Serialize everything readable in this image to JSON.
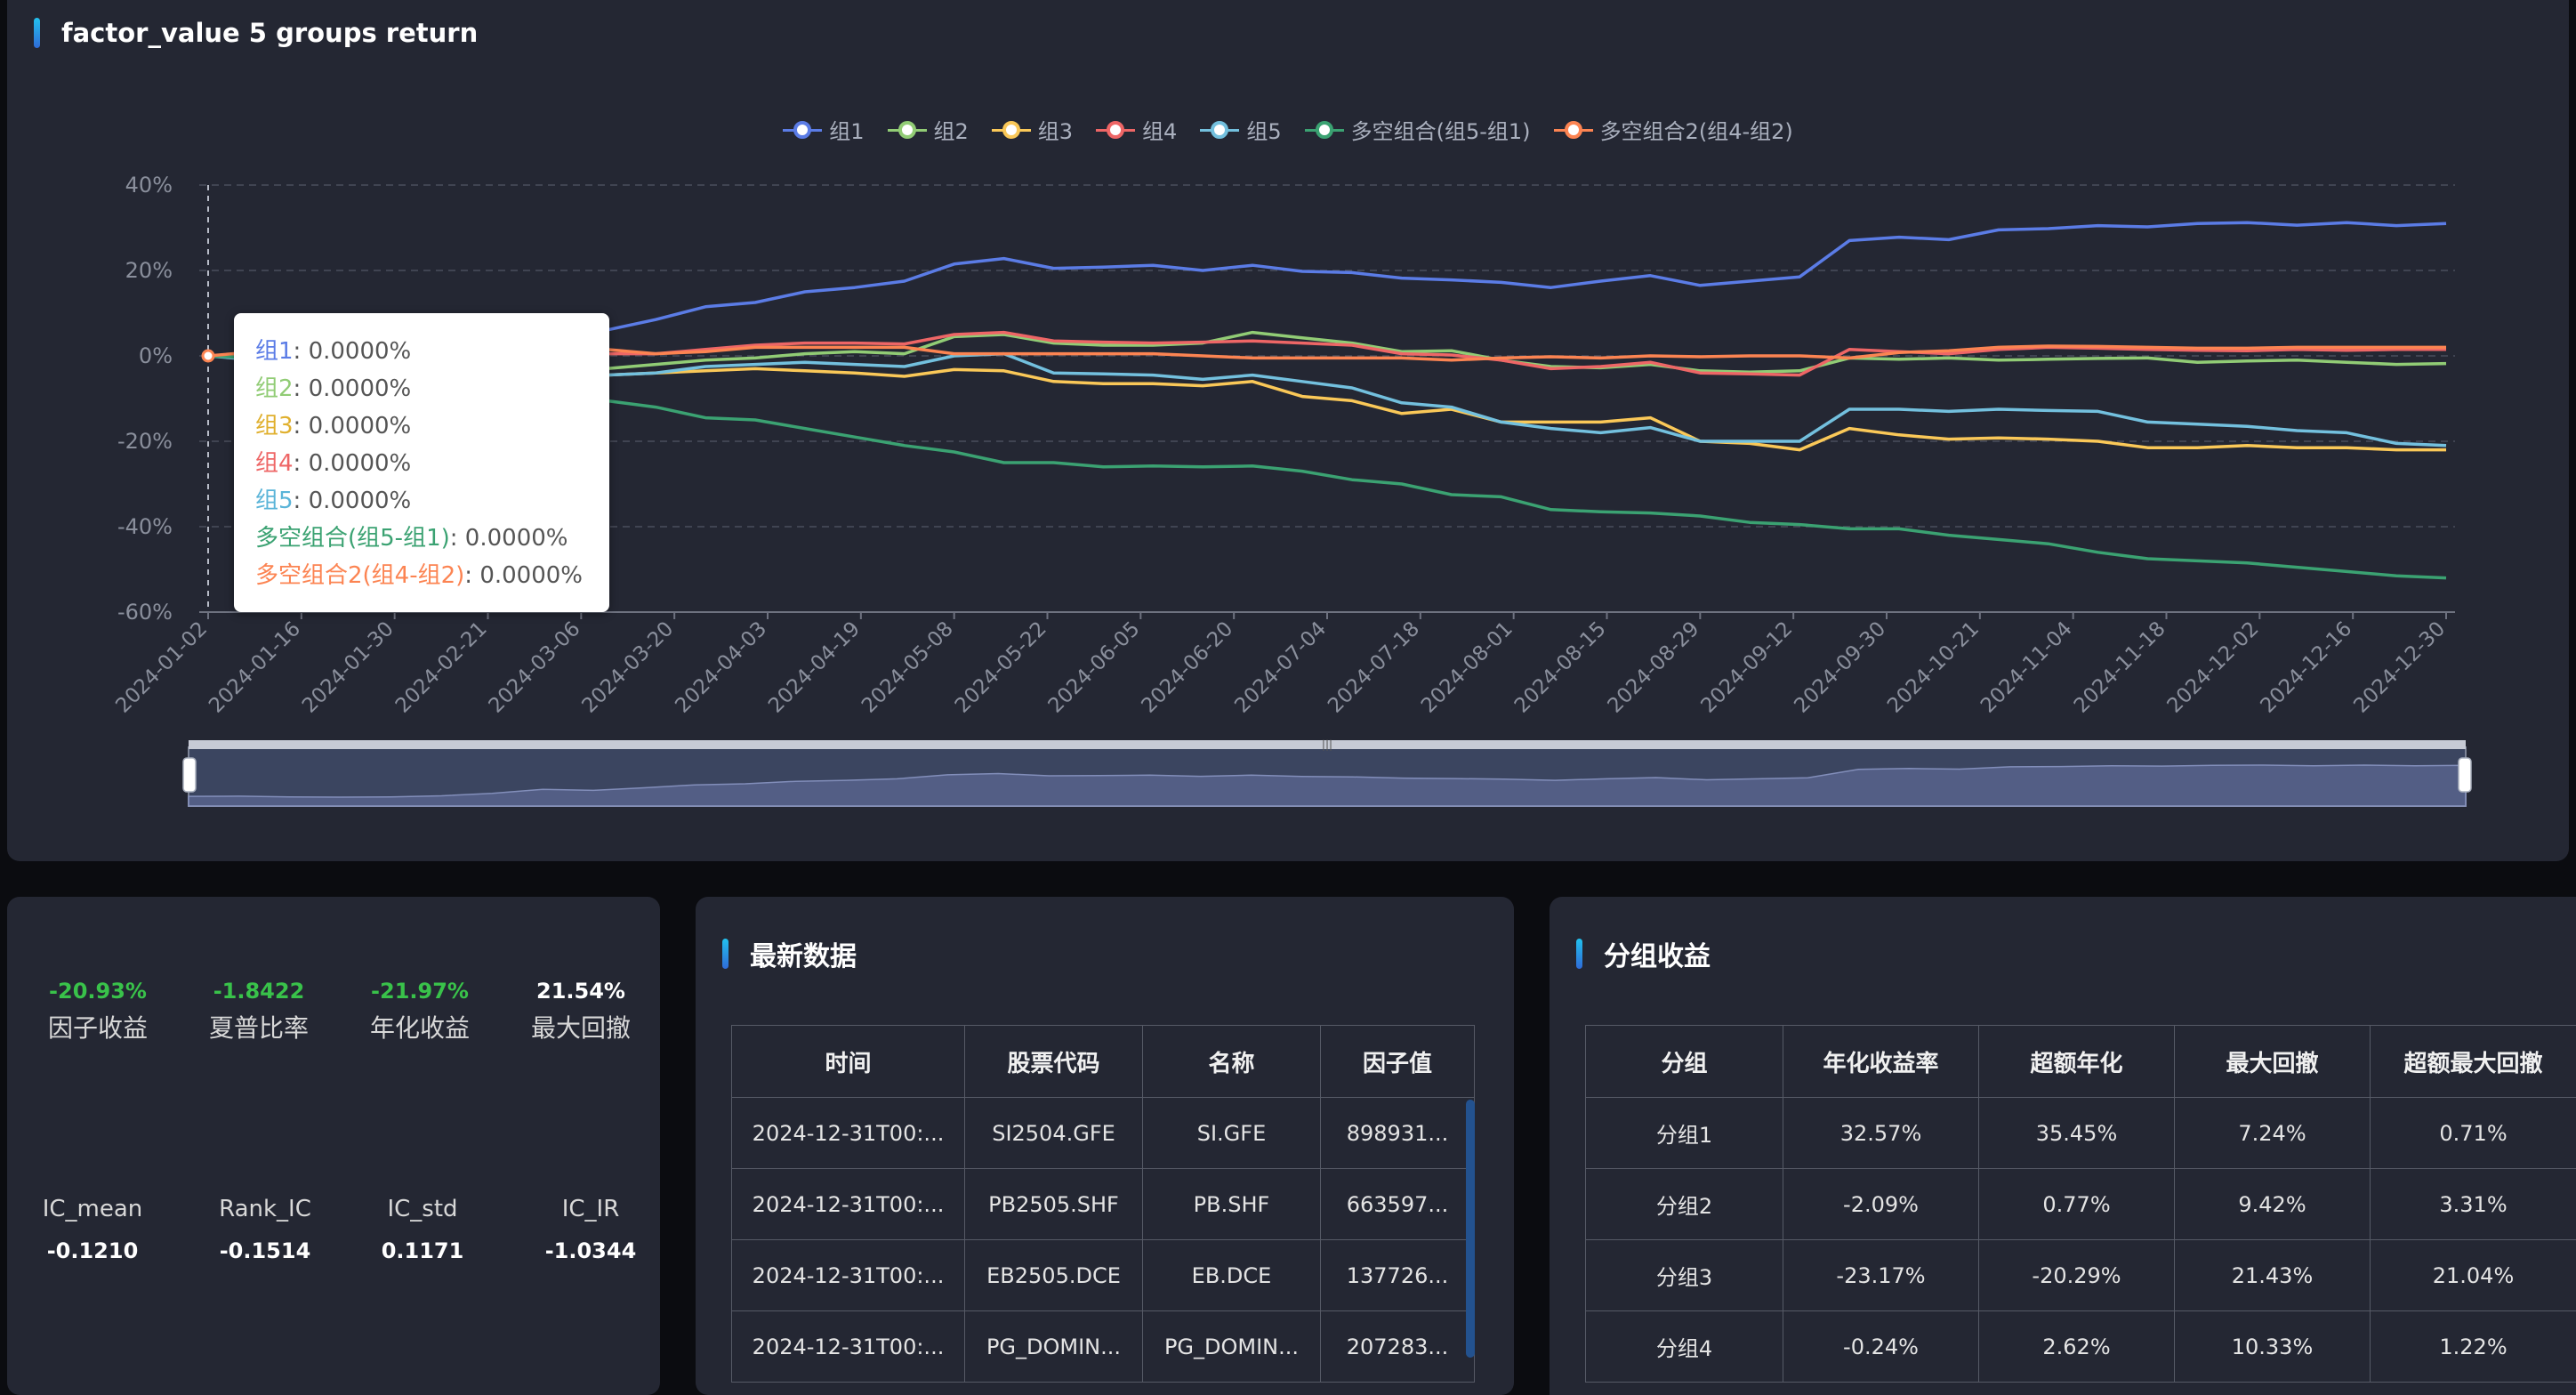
{
  "chart_panel": {
    "title": "factor_value 5 groups return",
    "legend": [
      {
        "name": "组1",
        "color": "#5b7ce6"
      },
      {
        "name": "组2",
        "color": "#91cc75"
      },
      {
        "name": "组3",
        "color": "#fac858"
      },
      {
        "name": "组4",
        "color": "#ee6666"
      },
      {
        "name": "组5",
        "color": "#73c0de"
      },
      {
        "name": "多空组合(组5-组1)",
        "color": "#3ba272"
      },
      {
        "name": "多空组合2(组4-组2)",
        "color": "#fc8452"
      }
    ],
    "tooltip": [
      {
        "name": "组1",
        "value": "0.0000%",
        "color": "#5b7ce6"
      },
      {
        "name": "组2",
        "value": "0.0000%",
        "color": "#91cc75"
      },
      {
        "name": "组3",
        "value": "0.0000%",
        "color": "#e0b02e"
      },
      {
        "name": "组4",
        "value": "0.0000%",
        "color": "#ee6666"
      },
      {
        "name": "组5",
        "value": "0.0000%",
        "color": "#5ab4d8"
      },
      {
        "name": "多空组合(组5-组1)",
        "value": "0.0000%",
        "color": "#3ba272"
      },
      {
        "name": "多空组合2(组4-组2)",
        "value": "0.0000%",
        "color": "#fc8452"
      }
    ]
  },
  "chart_data": {
    "type": "line",
    "title": "factor_value 5 groups return",
    "x_tick_labels": [
      "2024-01-02",
      "2024-01-16",
      "2024-01-30",
      "2024-02-21",
      "2024-03-06",
      "2024-03-20",
      "2024-04-03",
      "2024-04-19",
      "2024-05-08",
      "2024-05-22",
      "2024-06-05",
      "2024-06-20",
      "2024-07-04",
      "2024-07-18",
      "2024-08-01",
      "2024-08-15",
      "2024-08-29",
      "2024-09-12",
      "2024-09-30",
      "2024-10-21",
      "2024-11-04",
      "2024-11-18",
      "2024-12-02",
      "2024-12-16",
      "2024-12-30"
    ],
    "y_ticks": [
      "40%",
      "20%",
      "0%",
      "-20%",
      "-40%",
      "-60%"
    ],
    "ylim": [
      -60,
      40
    ],
    "grid": true,
    "legend_position": "top-center",
    "series": [
      {
        "name": "组1",
        "values": [
          0,
          0.2,
          -0.5,
          -0.8,
          -0.5,
          0.5,
          3,
          7,
          6,
          8.5,
          11.5,
          12.5,
          15,
          16,
          17.5,
          21.5,
          22.8,
          20.5,
          20.8,
          21.2,
          20,
          21.2,
          19.8,
          19.5,
          18.2,
          17.8,
          17.2,
          16,
          17.5,
          18.8,
          16.5,
          17.5,
          18.5,
          27,
          27.8,
          27.2,
          29.5,
          29.8,
          30.5,
          30.2,
          31,
          31.2,
          30.6,
          31.2,
          30.5,
          31
        ]
      },
      {
        "name": "组2",
        "values": [
          0,
          -0.5,
          -1,
          -1.5,
          -1,
          -1.5,
          -1,
          -0.5,
          -3,
          -2,
          -1,
          -0.5,
          0.5,
          1,
          0.5,
          4.5,
          5,
          3,
          2.5,
          2.5,
          3,
          5.5,
          4.2,
          3,
          1,
          1.2,
          -1,
          -2.5,
          -2.8,
          -2,
          -3.5,
          -3.8,
          -3.5,
          -0.5,
          -0.8,
          -0.5,
          -1,
          -0.8,
          -0.6,
          -0.5,
          -1.5,
          -1.2,
          -1,
          -1.5,
          -2,
          -1.8
        ]
      },
      {
        "name": "组3",
        "values": [
          0,
          -0.8,
          -1.5,
          -2,
          -2.5,
          -2.8,
          -2,
          -1.5,
          -4.5,
          -4,
          -3.5,
          -3,
          -3.5,
          -4,
          -4.8,
          -3.2,
          -3.5,
          -6,
          -6.5,
          -6.5,
          -7,
          -6,
          -9.5,
          -10.5,
          -13.5,
          -12.5,
          -15.5,
          -15.5,
          -15.5,
          -14.5,
          -20,
          -20.5,
          -22,
          -17,
          -18.5,
          -19.5,
          -19.2,
          -19.5,
          -20,
          -21.5,
          -21.5,
          -21,
          -21.5,
          -21.5,
          -22,
          -22
        ]
      },
      {
        "name": "组4",
        "values": [
          0,
          0.5,
          0.5,
          0.3,
          0.5,
          1,
          2,
          2,
          0.5,
          0.5,
          1.5,
          2.5,
          3,
          3,
          2.8,
          5,
          5.5,
          3.5,
          3.2,
          3,
          3.2,
          3.5,
          3,
          2.5,
          0.5,
          0.2,
          -1,
          -3,
          -2.5,
          -1.5,
          -4,
          -4.2,
          -4.5,
          1.5,
          1,
          0.5,
          1.5,
          2,
          1.8,
          1.5,
          1.3,
          1.2,
          1.5,
          1.3,
          1.5,
          1.5
        ]
      },
      {
        "name": "组5",
        "values": [
          0,
          -1,
          -1.5,
          -2,
          -2.5,
          -3,
          -3.5,
          -3,
          -4.5,
          -4,
          -2.5,
          -2,
          -1.5,
          -2,
          -2.5,
          0,
          0.5,
          -4,
          -4.2,
          -4.5,
          -5.5,
          -4.5,
          -6,
          -7.5,
          -11,
          -12,
          -15.5,
          -17,
          -18,
          -16.8,
          -20,
          -20,
          -20,
          -12.5,
          -12.5,
          -13,
          -12.5,
          -12.8,
          -13,
          -15.5,
          -16,
          -16.5,
          -17.5,
          -18,
          -20.5,
          -21
        ]
      },
      {
        "name": "多空组合(组5-组1)",
        "values": [
          0,
          -0.5,
          -1,
          -1.5,
          -2.5,
          -3.5,
          -6.5,
          -10,
          -10.5,
          -12,
          -14.5,
          -15,
          -17,
          -19,
          -21,
          -22.5,
          -25,
          -25,
          -26,
          -25.8,
          -26,
          -25.8,
          -27,
          -29,
          -30,
          -32.5,
          -33,
          -36,
          -36.5,
          -36.8,
          -37.5,
          -39,
          -39.5,
          -40.5,
          -40.5,
          -42,
          -43,
          -44,
          -46,
          -47.5,
          -48,
          -48.5,
          -49.5,
          -50.5,
          -51.5,
          -52
        ]
      },
      {
        "name": "多空组合2(组4-组2)",
        "values": [
          0,
          1,
          1.5,
          1.8,
          1.5,
          2.5,
          3,
          2.5,
          1.5,
          0.5,
          1,
          2,
          2,
          2,
          2,
          0.5,
          0.5,
          0.5,
          0.5,
          0.5,
          0,
          -0.5,
          -0.5,
          -0.5,
          -0.5,
          -1,
          -0.5,
          -0.2,
          -0.5,
          0,
          -0.2,
          0,
          0,
          -0.5,
          0.8,
          1.2,
          2,
          2.3,
          2.2,
          2,
          1.8,
          1.8,
          2,
          2,
          2,
          2
        ]
      }
    ]
  },
  "stats": {
    "top": [
      {
        "value": "-20.93%",
        "label": "因子收益",
        "color": "#39c24a"
      },
      {
        "value": "-1.8422",
        "label": "夏普比率",
        "color": "#39c24a"
      },
      {
        "value": "-21.97%",
        "label": "年化收益",
        "color": "#39c24a"
      },
      {
        "value": "21.54%",
        "label": "最大回撤",
        "color": "#ffffff"
      }
    ],
    "bottom": [
      {
        "label": "IC_mean",
        "value": "-0.1210"
      },
      {
        "label": "Rank_IC",
        "value": "-0.1514"
      },
      {
        "label": "IC_std",
        "value": "0.1171"
      },
      {
        "label": "IC_IR",
        "value": "-1.0344"
      }
    ]
  },
  "latest": {
    "title": "最新数据",
    "columns": [
      "时间",
      "股票代码",
      "名称",
      "因子值"
    ],
    "rows": [
      [
        "2024-12-31T00:...",
        "SI2504.GFE",
        "SI.GFE",
        "898931..."
      ],
      [
        "2024-12-31T00:...",
        "PB2505.SHF",
        "PB.SHF",
        "663597..."
      ],
      [
        "2024-12-31T00:...",
        "EB2505.DCE",
        "EB.DCE",
        "137726..."
      ],
      [
        "2024-12-31T00:...",
        "PG_DOMIN...",
        "PG_DOMIN...",
        "207283..."
      ]
    ]
  },
  "groups": {
    "title": "分组收益",
    "columns": [
      "分组",
      "年化收益率",
      "超额年化",
      "最大回撤",
      "超额最大回撤"
    ],
    "rows": [
      [
        "分组1",
        "32.57%",
        "35.45%",
        "7.24%",
        "0.71%"
      ],
      [
        "分组2",
        "-2.09%",
        "0.77%",
        "9.42%",
        "3.31%"
      ],
      [
        "分组3",
        "-23.17%",
        "-20.29%",
        "21.43%",
        "21.04%"
      ],
      [
        "分组4",
        "-0.24%",
        "2.62%",
        "10.33%",
        "1.22%"
      ]
    ]
  }
}
